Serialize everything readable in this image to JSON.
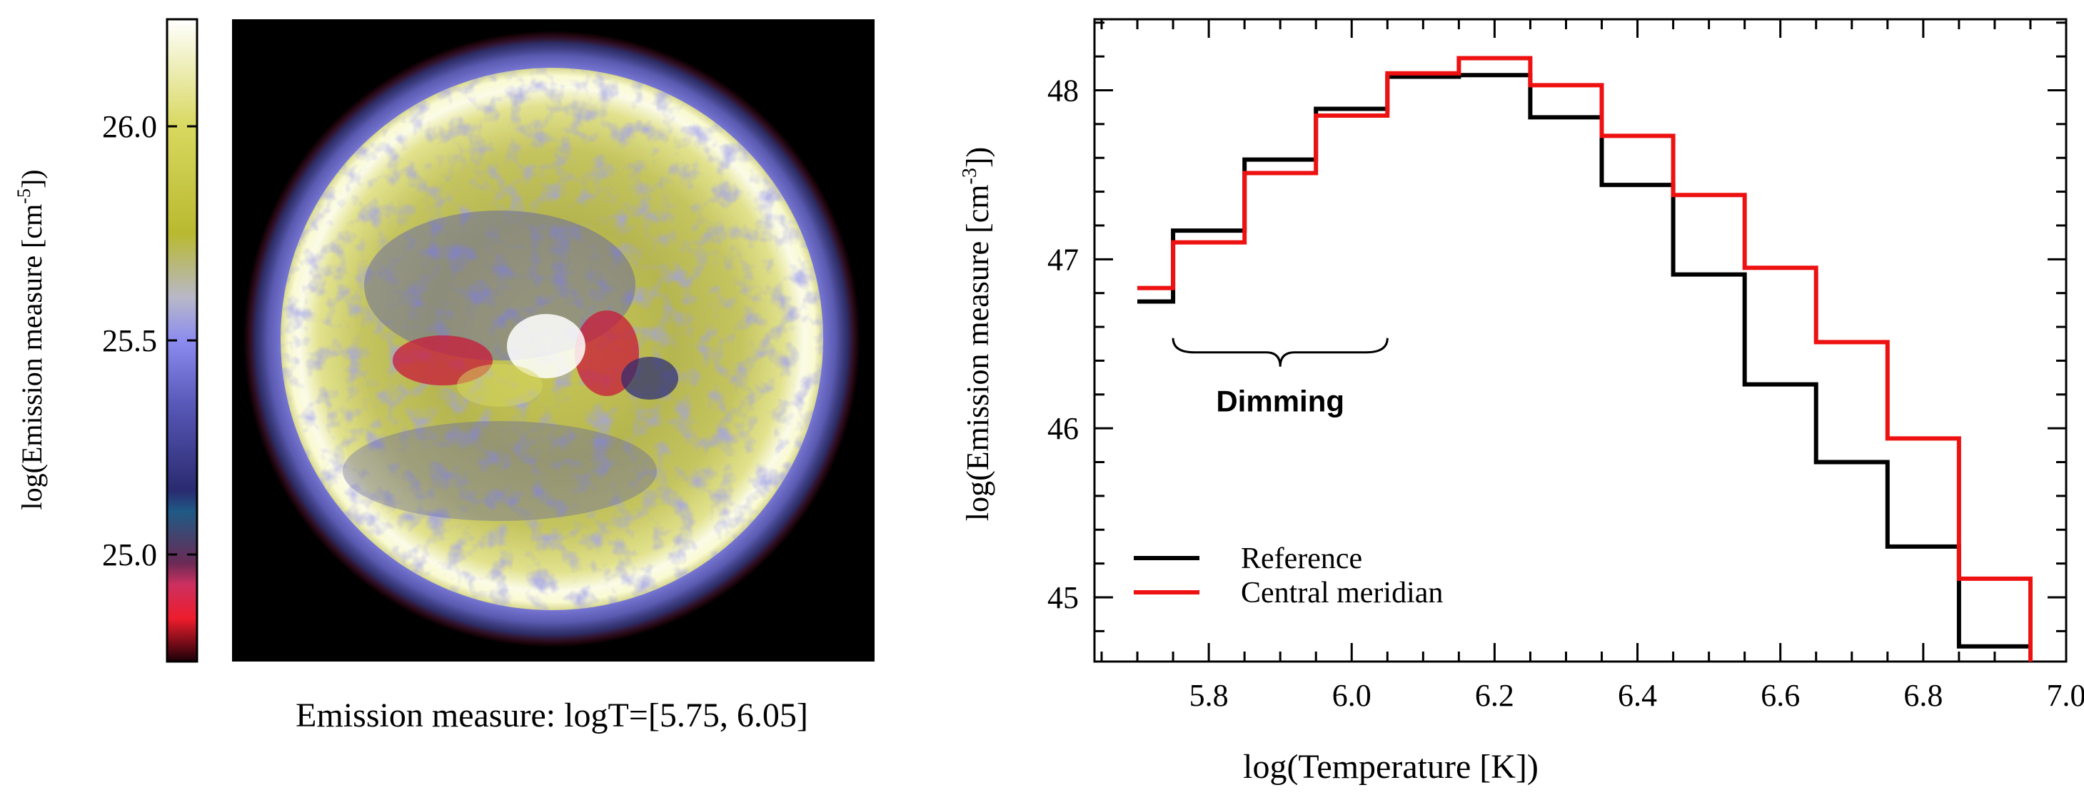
{
  "left_panel": {
    "colorbar": {
      "label_main": "log(Emission measure [cm",
      "label_sup": "-5",
      "label_end": "])",
      "ticks": [
        25.0,
        25.5,
        26.0
      ],
      "tick_labels": [
        "25.0",
        "25.5",
        "26.0"
      ],
      "range": [
        24.75,
        26.25
      ],
      "stops": [
        {
          "value": 24.75,
          "color": "#1a0008"
        },
        {
          "value": 24.85,
          "color": "#ee1c2c"
        },
        {
          "value": 24.93,
          "color": "#cc3060"
        },
        {
          "value": 24.98,
          "color": "#6a2a55"
        },
        {
          "value": 25.1,
          "color": "#1f5a85"
        },
        {
          "value": 25.15,
          "color": "#2a2a70"
        },
        {
          "value": 25.35,
          "color": "#5858b8"
        },
        {
          "value": 25.5,
          "color": "#8c8cf0"
        },
        {
          "value": 25.6,
          "color": "#b8b8c8"
        },
        {
          "value": 25.75,
          "color": "#b9b930"
        },
        {
          "value": 26.0,
          "color": "#d8d860"
        },
        {
          "value": 26.25,
          "color": "#ffffff"
        }
      ]
    },
    "image": {
      "caption": "Emission measure: logT=[5.75, 6.05]",
      "background_color": "#000000"
    }
  },
  "chart_data": {
    "type": "line",
    "step": "post",
    "xlabel": "log(Temperature [K])",
    "ylabel_main": "log(Emission measure [cm",
    "ylabel_sup": "-3",
    "ylabel_end": "])",
    "xlim": [
      5.64,
      7.0
    ],
    "ylim": [
      44.62,
      48.42
    ],
    "xticks": [
      5.8,
      6.0,
      6.2,
      6.4,
      6.6,
      6.8,
      7.0
    ],
    "xtick_labels": [
      "5.8",
      "6.0",
      "6.2",
      "6.4",
      "6.6",
      "6.8",
      "7.0"
    ],
    "yticks": [
      45,
      46,
      47,
      48
    ],
    "ytick_labels": [
      "45",
      "46",
      "47",
      "48"
    ],
    "x_minor_step": 0.05,
    "y_minor_step": 0.2,
    "series": [
      {
        "name": "Reference",
        "color": "#000000",
        "x": [
          5.7,
          5.75,
          5.85,
          5.95,
          6.05,
          6.15,
          6.25,
          6.35,
          6.45,
          6.55,
          6.65,
          6.75,
          6.85
        ],
        "values": [
          46.75,
          47.17,
          47.59,
          47.89,
          48.08,
          48.09,
          47.84,
          47.44,
          46.91,
          46.26,
          45.8,
          45.3,
          44.71
        ],
        "end_x": 6.95,
        "drop_to": 44.62
      },
      {
        "name": "Central meridian",
        "color": "#ee1111",
        "x": [
          5.7,
          5.75,
          5.85,
          5.95,
          6.05,
          6.15,
          6.25,
          6.35,
          6.45,
          6.55,
          6.65,
          6.75,
          6.85
        ],
        "values": [
          46.83,
          47.1,
          47.51,
          47.85,
          48.1,
          48.19,
          48.03,
          47.73,
          47.38,
          46.95,
          46.51,
          45.94,
          45.11
        ],
        "end_x": 6.95,
        "drop_to": 44.62
      }
    ],
    "annotation": {
      "text": "Dimming",
      "x_range": [
        5.75,
        6.05
      ],
      "brace_y": 46.5
    },
    "legend_position": "bottom-left",
    "grid": false
  }
}
